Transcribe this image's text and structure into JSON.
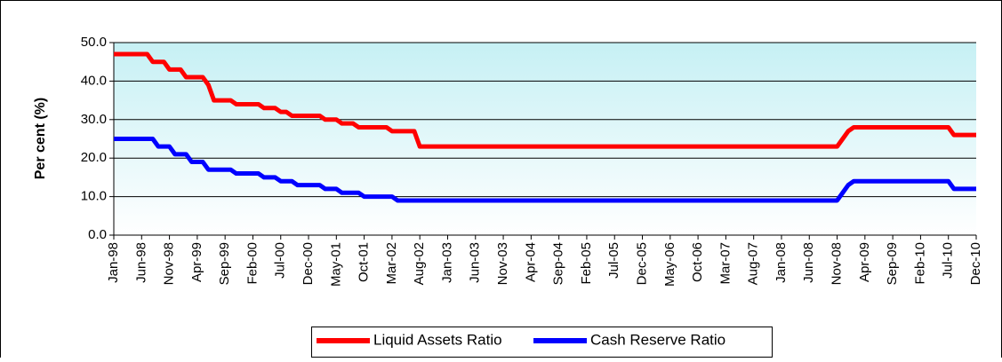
{
  "chart_data": {
    "type": "line",
    "y_label": "Per cent (%)",
    "categories": [
      "Jan-98",
      null,
      null,
      null,
      null,
      "Jun-98",
      null,
      null,
      null,
      null,
      "Nov-98",
      null,
      null,
      null,
      null,
      "Apr-99",
      null,
      null,
      null,
      null,
      "Sep-99",
      null,
      null,
      null,
      null,
      "Feb-00",
      null,
      null,
      null,
      null,
      "Jul-00",
      null,
      null,
      null,
      null,
      "Dec-00",
      null,
      null,
      null,
      null,
      "May-01",
      null,
      null,
      null,
      null,
      "Oct-01",
      null,
      null,
      null,
      null,
      "Mar-02",
      null,
      null,
      null,
      null,
      "Aug-02",
      null,
      null,
      null,
      null,
      "Jan-03",
      null,
      null,
      null,
      null,
      "Jun-03",
      null,
      null,
      null,
      null,
      "Nov-03",
      null,
      null,
      null,
      null,
      "Apr-04",
      null,
      null,
      null,
      null,
      "Sep-04",
      null,
      null,
      null,
      null,
      "Feb-05",
      null,
      null,
      null,
      null,
      "Jul-05",
      null,
      null,
      null,
      null,
      "Dec-05",
      null,
      null,
      null,
      null,
      "May-06",
      null,
      null,
      null,
      null,
      "Oct-06",
      null,
      null,
      null,
      null,
      "Mar-07",
      null,
      null,
      null,
      null,
      "Aug-07",
      null,
      null,
      null,
      null,
      "Jan-08",
      null,
      null,
      null,
      null,
      "Jun-08",
      null,
      null,
      null,
      null,
      "Nov-08",
      null,
      null,
      null,
      null,
      "Apr-09",
      null,
      null,
      null,
      null,
      "Sep-09",
      null,
      null,
      null,
      null,
      "Feb-10",
      null,
      null,
      null,
      null,
      "Jul-10",
      null,
      null,
      null,
      null,
      "Dec-10"
    ],
    "series": [
      {
        "name": "Liquid Assets Ratio",
        "color": "#ff0000",
        "values": [
          47,
          47,
          47,
          47,
          47,
          47,
          47,
          45,
          45,
          45,
          43,
          43,
          43,
          41,
          41,
          41,
          41,
          39,
          35,
          35,
          35,
          35,
          34,
          34,
          34,
          34,
          34,
          33,
          33,
          33,
          32,
          32,
          31,
          31,
          31,
          31,
          31,
          31,
          30,
          30,
          30,
          29,
          29,
          29,
          28,
          28,
          28,
          28,
          28,
          28,
          27,
          27,
          27,
          27,
          27,
          23,
          23,
          23,
          23,
          23,
          23,
          23,
          23,
          23,
          23,
          23,
          23,
          23,
          23,
          23,
          23,
          23,
          23,
          23,
          23,
          23,
          23,
          23,
          23,
          23,
          23,
          23,
          23,
          23,
          23,
          23,
          23,
          23,
          23,
          23,
          23,
          23,
          23,
          23,
          23,
          23,
          23,
          23,
          23,
          23,
          23,
          23,
          23,
          23,
          23,
          23,
          23,
          23,
          23,
          23,
          23,
          23,
          23,
          23,
          23,
          23,
          23,
          23,
          23,
          23,
          23,
          23,
          23,
          23,
          23,
          23,
          23,
          23,
          23,
          23,
          23,
          25,
          27,
          28,
          28,
          28,
          28,
          28,
          28,
          28,
          28,
          28,
          28,
          28,
          28,
          28,
          28,
          28,
          28,
          28,
          28,
          26,
          26,
          26,
          26,
          26
        ]
      },
      {
        "name": "Cash Reserve Ratio",
        "color": "#0000ff",
        "values": [
          25,
          25,
          25,
          25,
          25,
          25,
          25,
          25,
          23,
          23,
          23,
          21,
          21,
          21,
          19,
          19,
          19,
          17,
          17,
          17,
          17,
          17,
          16,
          16,
          16,
          16,
          16,
          15,
          15,
          15,
          14,
          14,
          14,
          13,
          13,
          13,
          13,
          13,
          12,
          12,
          12,
          11,
          11,
          11,
          11,
          10,
          10,
          10,
          10,
          10,
          10,
          9,
          9,
          9,
          9,
          9,
          9,
          9,
          9,
          9,
          9,
          9,
          9,
          9,
          9,
          9,
          9,
          9,
          9,
          9,
          9,
          9,
          9,
          9,
          9,
          9,
          9,
          9,
          9,
          9,
          9,
          9,
          9,
          9,
          9,
          9,
          9,
          9,
          9,
          9,
          9,
          9,
          9,
          9,
          9,
          9,
          9,
          9,
          9,
          9,
          9,
          9,
          9,
          9,
          9,
          9,
          9,
          9,
          9,
          9,
          9,
          9,
          9,
          9,
          9,
          9,
          9,
          9,
          9,
          9,
          9,
          9,
          9,
          9,
          9,
          9,
          9,
          9,
          9,
          9,
          9,
          11,
          13,
          14,
          14,
          14,
          14,
          14,
          14,
          14,
          14,
          14,
          14,
          14,
          14,
          14,
          14,
          14,
          14,
          14,
          14,
          12,
          12,
          12,
          12,
          12
        ]
      }
    ],
    "ylim": [
      0,
      50
    ],
    "yticks": [
      {
        "value": 0,
        "label": "0.0"
      },
      {
        "value": 10,
        "label": "10.0"
      },
      {
        "value": 20,
        "label": "20.0"
      },
      {
        "value": 30,
        "label": "30.0"
      },
      {
        "value": 40,
        "label": "40.0"
      },
      {
        "value": 50,
        "label": "50.0"
      }
    ],
    "grid": true,
    "legend": "bottom"
  }
}
